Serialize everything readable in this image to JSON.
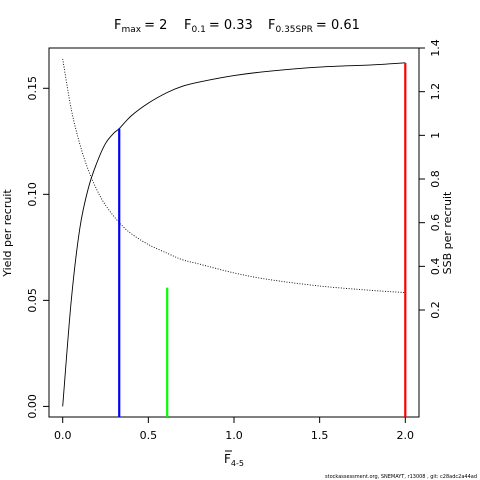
{
  "title": {
    "fmax": {
      "label": "F",
      "sub": "max",
      "value": "= 2"
    },
    "f01": {
      "label": "F",
      "sub": "0.1",
      "value": "= 0.33"
    },
    "f035": {
      "label": "F",
      "sub": "0.35SPR",
      "value": "= 0.61"
    }
  },
  "footer": "stockassessment.org, SNEMAYT, r13008 , git: c28adc2a44ad",
  "chart_data": {
    "type": "line",
    "xlabel": {
      "label": "F",
      "sub": "4-5"
    },
    "ylabel_left": "Yield per recruit",
    "ylabel_right": "SSB per recruit",
    "xlim": [
      -0.08,
      2.08
    ],
    "ylim_left": [
      -0.005,
      0.169
    ],
    "ylim_right": [
      -0.29,
      1.4
    ],
    "x_ticks": [
      0,
      0.5,
      1,
      1.5,
      2
    ],
    "x_tick_labels": [
      "0.0",
      "0.5",
      "1.0",
      "1.5",
      "2.0"
    ],
    "yleft_ticks": [
      0,
      0.05,
      0.1,
      0.15
    ],
    "yleft_tick_labels": [
      "0.00",
      "0.05",
      "0.10",
      "0.15"
    ],
    "yright_ticks": [
      0.2,
      0.4,
      0.6,
      0.8,
      1,
      1.2,
      1.4
    ],
    "yright_tick_labels": [
      "0.2",
      "0.4",
      "0.6",
      "0.8",
      "1",
      "1.2",
      "1.4"
    ],
    "series": [
      {
        "axis": "left",
        "style": "solid",
        "color": "#000000",
        "x": [
          0,
          0.05,
          0.1,
          0.15,
          0.2,
          0.25,
          0.3,
          0.33,
          0.4,
          0.5,
          0.61,
          0.7,
          0.8,
          1.0,
          1.2,
          1.5,
          1.8,
          2.0
        ],
        "y": [
          0,
          0.05,
          0.084,
          0.103,
          0.115,
          0.124,
          0.129,
          0.131,
          0.137,
          0.143,
          0.148,
          0.151,
          0.153,
          0.156,
          0.158,
          0.16,
          0.161,
          0.162
        ]
      },
      {
        "axis": "right",
        "style": "dotted",
        "color": "#000000",
        "x": [
          0,
          0.05,
          0.1,
          0.15,
          0.2,
          0.25,
          0.33,
          0.4,
          0.5,
          0.61,
          0.7,
          0.8,
          1.0,
          1.2,
          1.5,
          1.8,
          2.0
        ],
        "y": [
          1.35,
          1.12,
          0.96,
          0.84,
          0.75,
          0.68,
          0.6,
          0.55,
          0.5,
          0.46,
          0.43,
          0.41,
          0.37,
          0.34,
          0.31,
          0.29,
          0.28
        ]
      }
    ],
    "reference_lines": [
      {
        "name": "F0.1",
        "x": 0.33,
        "y_top": 0.131,
        "color": "#0000ff"
      },
      {
        "name": "F0.35SPR",
        "x": 0.61,
        "y_top": 0.056,
        "color": "#00ff00"
      },
      {
        "name": "Fmax",
        "x": 2.0,
        "y_top": 0.162,
        "color": "#ff0000"
      }
    ]
  }
}
